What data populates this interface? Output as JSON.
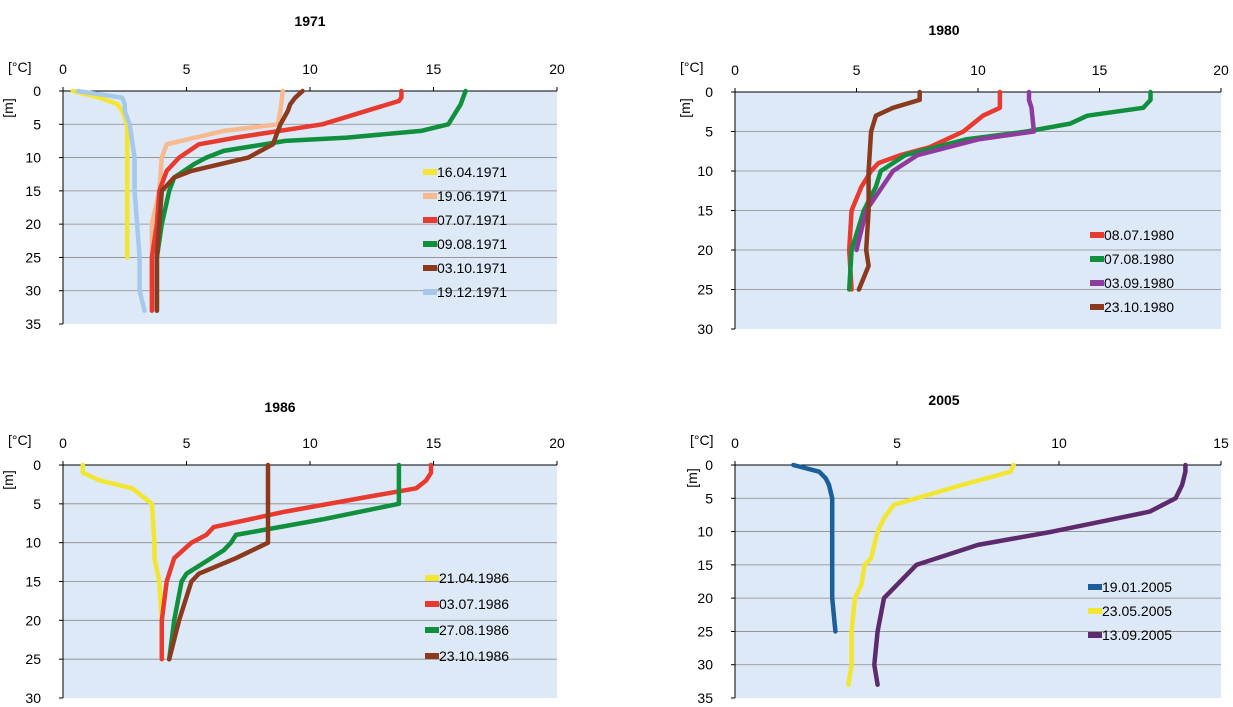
{
  "chart_data": [
    {
      "type": "line",
      "title": "1971",
      "xlabel": "[°C]",
      "ylabel": "[m]",
      "xlim": [
        0,
        20
      ],
      "ylim": [
        0,
        35
      ],
      "y_inverted": true,
      "x_axis_position": "top",
      "xticks": [
        "0",
        "5",
        "10",
        "15",
        "20"
      ],
      "yticks": [
        "0",
        "5",
        "10",
        "15",
        "20",
        "25",
        "30",
        "35"
      ],
      "grid": "horizontal",
      "legend_position": "bottom-right",
      "series": [
        {
          "name": "16.04.1971",
          "color": "#f2e633",
          "points": [
            [
              0.4,
              0
            ],
            [
              1.5,
              1
            ],
            [
              2.2,
              2
            ],
            [
              2.4,
              3
            ],
            [
              2.6,
              5
            ],
            [
              2.6,
              10
            ],
            [
              2.6,
              15
            ],
            [
              2.6,
              20
            ],
            [
              2.6,
              25
            ]
          ]
        },
        {
          "name": "19.06.1971",
          "color": "#f8b98e",
          "points": [
            [
              8.9,
              0
            ],
            [
              8.8,
              3
            ],
            [
              8.7,
              5
            ],
            [
              6.5,
              6
            ],
            [
              4.2,
              8
            ],
            [
              4.0,
              10
            ],
            [
              3.9,
              15
            ],
            [
              3.6,
              20
            ],
            [
              3.6,
              25
            ],
            [
              3.6,
              33
            ]
          ]
        },
        {
          "name": "07.07.1971",
          "color": "#e83a2e",
          "points": [
            [
              13.7,
              0
            ],
            [
              13.7,
              1
            ],
            [
              13.6,
              1.5
            ],
            [
              10.5,
              5
            ],
            [
              7,
              7
            ],
            [
              5.5,
              8
            ],
            [
              4.7,
              10
            ],
            [
              4.2,
              12
            ],
            [
              3.9,
              15
            ],
            [
              3.8,
              20
            ],
            [
              3.6,
              25
            ],
            [
              3.6,
              33
            ]
          ]
        },
        {
          "name": "09.08.1971",
          "color": "#108f3c",
          "points": [
            [
              16.3,
              0
            ],
            [
              16.2,
              1
            ],
            [
              16.1,
              2
            ],
            [
              15.6,
              5
            ],
            [
              14.5,
              6
            ],
            [
              11.5,
              7
            ],
            [
              9.0,
              7.5
            ],
            [
              6.5,
              9
            ],
            [
              5.8,
              10
            ],
            [
              5.3,
              11
            ],
            [
              4.5,
              13
            ],
            [
              4.3,
              15
            ],
            [
              4.0,
              20
            ],
            [
              3.8,
              25
            ],
            [
              3.8,
              33
            ]
          ]
        },
        {
          "name": "03.10.1971",
          "color": "#8b3a1e",
          "points": [
            [
              9.7,
              0
            ],
            [
              9.4,
              1
            ],
            [
              9.2,
              2
            ],
            [
              9.1,
              3
            ],
            [
              8.8,
              5
            ],
            [
              8.7,
              6
            ],
            [
              8.5,
              8
            ],
            [
              8.0,
              9
            ],
            [
              7.5,
              10
            ],
            [
              5.2,
              12
            ],
            [
              4.5,
              13
            ],
            [
              4.0,
              15
            ],
            [
              3.9,
              20
            ],
            [
              3.8,
              25
            ],
            [
              3.8,
              33
            ]
          ]
        },
        {
          "name": "19.12.1971",
          "color": "#a6c8ea",
          "points": [
            [
              0.6,
              0
            ],
            [
              1.5,
              0.5
            ],
            [
              2.4,
              1
            ],
            [
              2.5,
              2
            ],
            [
              2.5,
              3
            ],
            [
              2.7,
              5
            ],
            [
              2.9,
              10
            ],
            [
              2.9,
              15
            ],
            [
              3.0,
              20
            ],
            [
              3.1,
              25
            ],
            [
              3.1,
              30
            ],
            [
              3.3,
              33
            ]
          ]
        }
      ]
    },
    {
      "type": "line",
      "title": "1980",
      "xlabel": "[°C]",
      "ylabel": "[m]",
      "xlim": [
        0,
        20
      ],
      "ylim": [
        0,
        30
      ],
      "y_inverted": true,
      "x_axis_position": "top",
      "xticks": [
        "0",
        "5",
        "10",
        "15",
        "20"
      ],
      "yticks": [
        "0",
        "5",
        "10",
        "15",
        "20",
        "25",
        "30"
      ],
      "grid": "horizontal",
      "legend_position": "bottom-right",
      "series": [
        {
          "name": "08.07.1980",
          "color": "#e83a2e",
          "points": [
            [
              10.9,
              0
            ],
            [
              10.9,
              1
            ],
            [
              10.9,
              2
            ],
            [
              10.2,
              3
            ],
            [
              9.4,
              5
            ],
            [
              8.0,
              7
            ],
            [
              6.8,
              8
            ],
            [
              5.9,
              9
            ],
            [
              5.6,
              10
            ],
            [
              5.2,
              12
            ],
            [
              4.8,
              15
            ],
            [
              4.7,
              20
            ],
            [
              4.8,
              25
            ]
          ]
        },
        {
          "name": "07.08.1980",
          "color": "#108f3c",
          "points": [
            [
              17.1,
              0
            ],
            [
              17.1,
              1
            ],
            [
              16.8,
              2
            ],
            [
              14.5,
              3
            ],
            [
              13.8,
              4
            ],
            [
              12.0,
              5
            ],
            [
              9.5,
              6
            ],
            [
              7.0,
              8
            ],
            [
              6.0,
              10
            ],
            [
              5.8,
              12
            ],
            [
              5.3,
              15
            ],
            [
              4.8,
              20
            ],
            [
              4.7,
              25
            ]
          ]
        },
        {
          "name": "03.09.1980",
          "color": "#8f3a9e",
          "points": [
            [
              12.1,
              0
            ],
            [
              12.1,
              1
            ],
            [
              12.2,
              2
            ],
            [
              12.3,
              5
            ],
            [
              10.0,
              6
            ],
            [
              7.5,
              8
            ],
            [
              6.5,
              10
            ],
            [
              5.4,
              15
            ],
            [
              5.0,
              20
            ]
          ]
        },
        {
          "name": "23.10.1980",
          "color": "#8b3a1e",
          "points": [
            [
              7.6,
              0
            ],
            [
              7.6,
              1
            ],
            [
              6.5,
              2
            ],
            [
              5.8,
              3
            ],
            [
              5.6,
              5
            ],
            [
              5.5,
              10
            ],
            [
              5.5,
              15
            ],
            [
              5.4,
              20
            ],
            [
              5.5,
              22
            ],
            [
              5.1,
              25
            ]
          ]
        }
      ]
    },
    {
      "type": "line",
      "title": "1986",
      "xlabel": "[°C]",
      "ylabel": "[m]",
      "xlim": [
        0,
        20
      ],
      "ylim": [
        0,
        30
      ],
      "y_inverted": true,
      "x_axis_position": "top",
      "xticks": [
        "0",
        "5",
        "10",
        "15",
        "20"
      ],
      "yticks": [
        "0",
        "5",
        "10",
        "15",
        "20",
        "25",
        "30"
      ],
      "grid": "horizontal",
      "legend_position": "bottom-right",
      "series": [
        {
          "name": "21.04.1986",
          "color": "#f2e633",
          "points": [
            [
              0.8,
              0
            ],
            [
              0.8,
              1
            ],
            [
              1.5,
              2
            ],
            [
              2.8,
              3
            ],
            [
              3.6,
              5
            ],
            [
              3.7,
              10
            ],
            [
              3.7,
              12
            ],
            [
              3.9,
              15
            ],
            [
              4.0,
              20
            ],
            [
              4.0,
              25
            ]
          ]
        },
        {
          "name": "03.07.1986",
          "color": "#e83a2e",
          "points": [
            [
              14.9,
              0
            ],
            [
              14.9,
              1
            ],
            [
              14.7,
              2
            ],
            [
              14.3,
              3
            ],
            [
              12.5,
              4
            ],
            [
              9.0,
              6
            ],
            [
              6.1,
              8
            ],
            [
              5.8,
              9
            ],
            [
              5.2,
              10
            ],
            [
              4.5,
              12
            ],
            [
              4.2,
              15
            ],
            [
              4.0,
              20
            ],
            [
              4.0,
              25
            ]
          ]
        },
        {
          "name": "27.08.1986",
          "color": "#108f3c",
          "points": [
            [
              13.6,
              0
            ],
            [
              13.6,
              1
            ],
            [
              13.6,
              5
            ],
            [
              10.5,
              7
            ],
            [
              7.0,
              9
            ],
            [
              6.8,
              10
            ],
            [
              6.5,
              11
            ],
            [
              5.0,
              14
            ],
            [
              4.8,
              15
            ],
            [
              4.5,
              20
            ],
            [
              4.3,
              25
            ]
          ]
        },
        {
          "name": "23.10.1986",
          "color": "#8b3a1e",
          "points": [
            [
              8.3,
              0
            ],
            [
              8.3,
              5
            ],
            [
              8.3,
              9
            ],
            [
              8.3,
              10
            ],
            [
              7.0,
              12
            ],
            [
              5.5,
              14
            ],
            [
              5.2,
              15
            ],
            [
              4.7,
              20
            ],
            [
              4.3,
              25
            ]
          ]
        }
      ]
    },
    {
      "type": "line",
      "title": "2005",
      "xlabel": "[°C]",
      "ylabel": "[m]",
      "xlim": [
        0,
        15
      ],
      "ylim": [
        0,
        35
      ],
      "y_inverted": true,
      "x_axis_position": "top",
      "xticks": [
        "0",
        "5",
        "10",
        "15"
      ],
      "yticks": [
        "0",
        "5",
        "10",
        "15",
        "20",
        "25",
        "30",
        "35"
      ],
      "grid": "horizontal",
      "legend_position": "right",
      "series": [
        {
          "name": "19.01.2005",
          "color": "#1b5e9a",
          "points": [
            [
              1.8,
              0
            ],
            [
              2.6,
              1
            ],
            [
              2.8,
              2
            ],
            [
              2.9,
              3
            ],
            [
              3.0,
              5
            ],
            [
              3.0,
              10
            ],
            [
              3.0,
              15
            ],
            [
              3.0,
              20
            ],
            [
              3.1,
              25
            ]
          ]
        },
        {
          "name": "23.05.2005",
          "color": "#f2e633",
          "points": [
            [
              8.6,
              0
            ],
            [
              8.5,
              1
            ],
            [
              7.0,
              3
            ],
            [
              5.6,
              5
            ],
            [
              4.9,
              6
            ],
            [
              4.6,
              8
            ],
            [
              4.4,
              10
            ],
            [
              4.3,
              12
            ],
            [
              4.2,
              14
            ],
            [
              4.0,
              15
            ],
            [
              3.9,
              18
            ],
            [
              3.7,
              20
            ],
            [
              3.6,
              25
            ],
            [
              3.6,
              30
            ],
            [
              3.5,
              33
            ]
          ]
        },
        {
          "name": "13.09.2005",
          "color": "#5e2a6e",
          "points": [
            [
              13.9,
              0
            ],
            [
              13.9,
              1
            ],
            [
              13.8,
              3
            ],
            [
              13.6,
              5
            ],
            [
              12.8,
              7
            ],
            [
              11.8,
              8
            ],
            [
              9.8,
              10
            ],
            [
              7.5,
              12
            ],
            [
              5.6,
              15
            ],
            [
              5.0,
              18
            ],
            [
              4.6,
              20
            ],
            [
              4.4,
              25
            ],
            [
              4.3,
              30
            ],
            [
              4.4,
              33
            ]
          ]
        }
      ]
    }
  ]
}
